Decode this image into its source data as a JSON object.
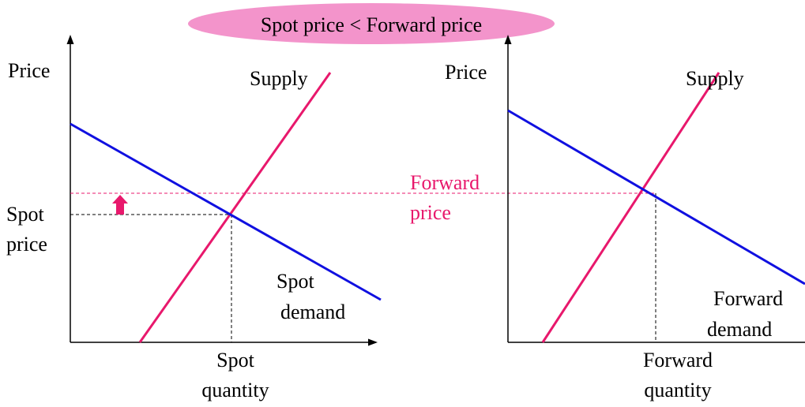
{
  "title": "Spot price < Forward price",
  "left": {
    "y_axis_label": "Price",
    "supply_label": "Supply",
    "price_label": [
      "Spot",
      "price"
    ],
    "demand_label": [
      "Spot",
      "demand"
    ],
    "quantity_label": [
      "Spot",
      "quantity"
    ]
  },
  "forward_price_label": [
    "Forward",
    "price"
  ],
  "right": {
    "y_axis_label": "Price",
    "supply_label": "Supply",
    "demand_label": [
      "Forward",
      "demand"
    ],
    "quantity_label": [
      "Forward",
      "quantity"
    ]
  }
}
